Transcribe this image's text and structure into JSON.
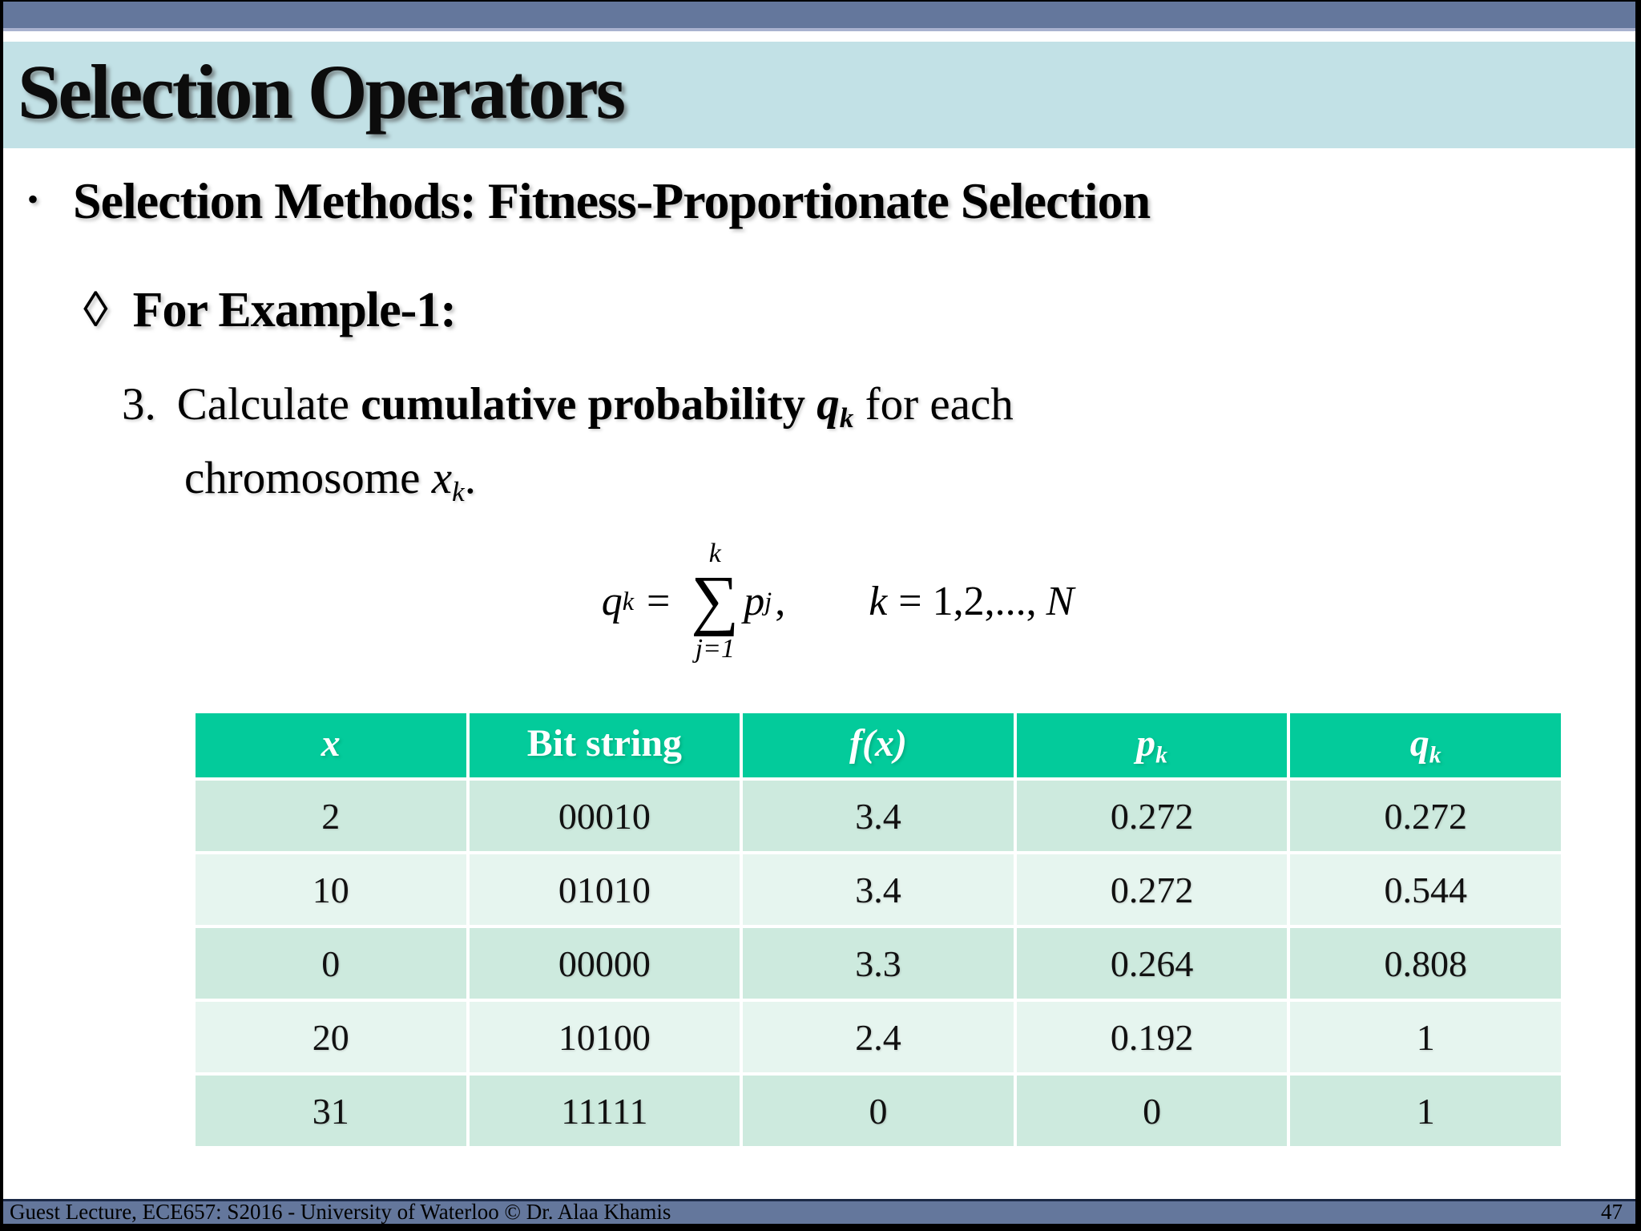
{
  "slide": {
    "title": "Selection Operators",
    "bullet_marker": "•",
    "bullet": "Selection Methods: Fitness-Proportionate Selection",
    "sub_bullet_marker": "◊",
    "sub_bullet": "For Example-1:",
    "step": {
      "number": "3.",
      "pre": "Calculate ",
      "bold_text": "cumulative probability ",
      "bold_var": "q",
      "bold_var_sub": "k",
      "post": " for each",
      "line2_pre": "chromosome ",
      "line2_var": "x",
      "line2_var_sub": "k",
      "line2_period": "."
    },
    "formula": {
      "lhs_var": "q",
      "lhs_sub": "k",
      "equals": "=",
      "sum_upper": "k",
      "sigma": "∑",
      "sum_lower": "j=1",
      "term_var": "p",
      "term_sub": "j",
      "comma": ",",
      "cond_var": "k",
      "cond_mid": "= 1,2,...,",
      "cond_end": "N"
    },
    "table": {
      "headers": [
        {
          "main": "x",
          "sub": ""
        },
        {
          "main": "Bit string",
          "sub": ""
        },
        {
          "main": "f(x)",
          "sub": ""
        },
        {
          "main": "p",
          "sub": "k"
        },
        {
          "main": "q",
          "sub": "k"
        }
      ],
      "rows": [
        [
          "2",
          "00010",
          "3.4",
          "0.272",
          "0.272"
        ],
        [
          "10",
          "01010",
          "3.4",
          "0.272",
          "0.544"
        ],
        [
          "0",
          "00000",
          "3.3",
          "0.264",
          "0.808"
        ],
        [
          "20",
          "10100",
          "2.4",
          "0.192",
          "1"
        ],
        [
          "31",
          "11111",
          "0",
          "0",
          "1"
        ]
      ]
    },
    "footer": {
      "left": "Guest Lecture, ECE657: S2016 - University of Waterloo © Dr. Alaa Khamis",
      "page": "47"
    },
    "colors": {
      "slate_bar": "#64779c",
      "slate_bar_underline": "#a9b2cf",
      "footer_top_border": "#1b2946",
      "title_band": "#c2e1e6",
      "table_header_green": "#03cb9b",
      "row_mint": "#cdeade",
      "row_pale": "#e6f5ef"
    }
  }
}
